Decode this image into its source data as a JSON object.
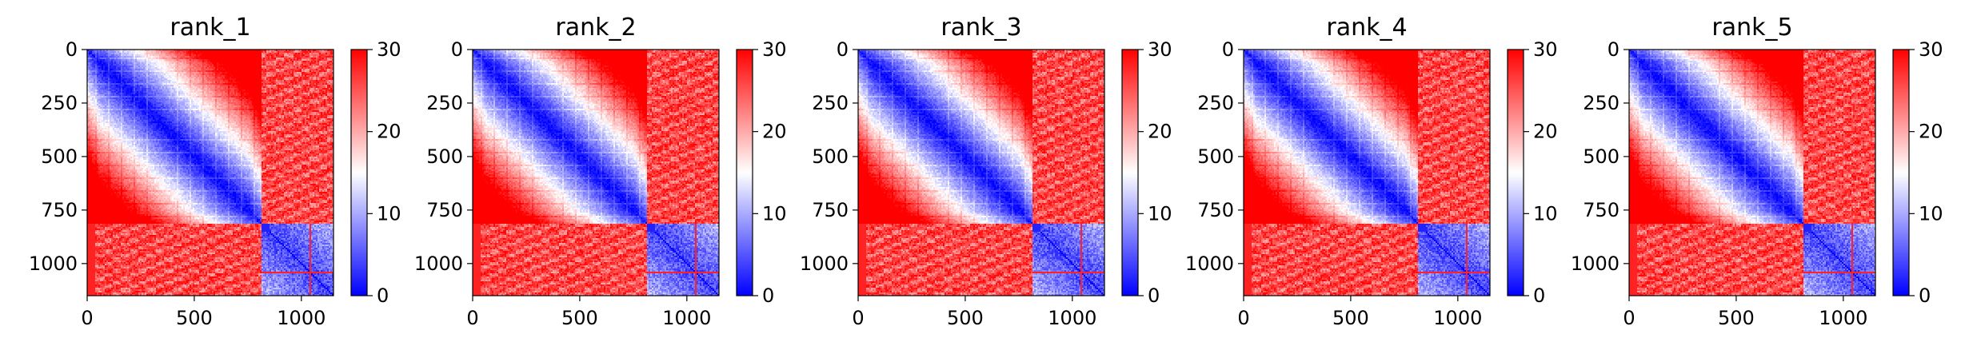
{
  "chart_data": [
    {
      "type": "heatmap",
      "title": "rank_1",
      "n": 1150,
      "block_split": 815,
      "xticks": [
        0,
        500,
        1000
      ],
      "yticks": [
        0,
        250,
        500,
        750,
        1000
      ],
      "xlim": [
        0,
        1150
      ],
      "ylim": [
        1150,
        0
      ],
      "colorbar": {
        "min": 0,
        "max": 30,
        "ticks": [
          0,
          10,
          20,
          30
        ],
        "colormap": "bwr"
      },
      "description_values": {
        "diag_low": 0,
        "upper_block_mid": 10,
        "offblock": 30
      },
      "glitch_rows": [
        1035,
        1045
      ]
    },
    {
      "type": "heatmap",
      "title": "rank_2",
      "n": 1150,
      "block_split": 815,
      "xticks": [
        0,
        500,
        1000
      ],
      "yticks": [
        0,
        250,
        500,
        750,
        1000
      ],
      "xlim": [
        0,
        1150
      ],
      "ylim": [
        1150,
        0
      ],
      "colorbar": {
        "min": 0,
        "max": 30,
        "ticks": [
          0,
          10,
          20,
          30
        ],
        "colormap": "bwr"
      },
      "description_values": {
        "diag_low": 0,
        "upper_block_mid": 10,
        "offblock": 30
      },
      "glitch_rows": [
        1035,
        1045
      ]
    },
    {
      "type": "heatmap",
      "title": "rank_3",
      "n": 1150,
      "block_split": 815,
      "xticks": [
        0,
        500,
        1000
      ],
      "yticks": [
        0,
        250,
        500,
        750,
        1000
      ],
      "xlim": [
        0,
        1150
      ],
      "ylim": [
        1150,
        0
      ],
      "colorbar": {
        "min": 0,
        "max": 30,
        "ticks": [
          0,
          10,
          20,
          30
        ],
        "colormap": "bwr"
      },
      "description_values": {
        "diag_low": 0,
        "upper_block_mid": 10,
        "offblock": 30
      },
      "glitch_rows": [
        1035,
        1045
      ]
    },
    {
      "type": "heatmap",
      "title": "rank_4",
      "n": 1150,
      "block_split": 815,
      "xticks": [
        0,
        500,
        1000
      ],
      "yticks": [
        0,
        250,
        500,
        750,
        1000
      ],
      "xlim": [
        0,
        1150
      ],
      "ylim": [
        1150,
        0
      ],
      "colorbar": {
        "min": 0,
        "max": 30,
        "ticks": [
          0,
          10,
          20,
          30
        ],
        "colormap": "bwr"
      },
      "description_values": {
        "diag_low": 0,
        "upper_block_mid": 10,
        "offblock": 30
      },
      "glitch_rows": [
        1035,
        1045
      ]
    },
    {
      "type": "heatmap",
      "title": "rank_5",
      "n": 1150,
      "block_split": 815,
      "xticks": [
        0,
        500,
        1000
      ],
      "yticks": [
        0,
        250,
        500,
        750,
        1000
      ],
      "xlim": [
        0,
        1150
      ],
      "ylim": [
        1150,
        0
      ],
      "colorbar": {
        "min": 0,
        "max": 30,
        "ticks": [
          0,
          10,
          20,
          30
        ],
        "colormap": "bwr"
      },
      "description_values": {
        "diag_low": 0,
        "upper_block_mid": 10,
        "offblock": 30
      },
      "glitch_rows": [
        1035,
        1045
      ]
    }
  ],
  "colors": {
    "low": "#0000ff",
    "mid": "#ffffff",
    "high": "#ff0000"
  }
}
